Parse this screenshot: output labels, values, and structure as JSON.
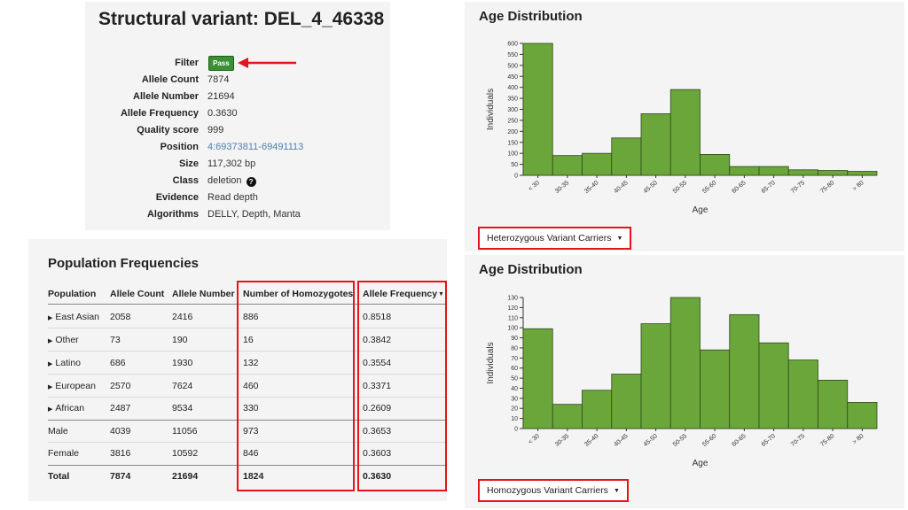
{
  "variant": {
    "title": "Structural variant: DEL_4_46338",
    "fields": [
      {
        "key": "Filter",
        "value": "Pass",
        "type": "badge"
      },
      {
        "key": "Allele Count",
        "value": "7874"
      },
      {
        "key": "Allele Number",
        "value": "21694"
      },
      {
        "key": "Allele Frequency",
        "value": "0.3630"
      },
      {
        "key": "Quality score",
        "value": "999"
      },
      {
        "key": "Position",
        "value": "4:69373811-69491113",
        "type": "link"
      },
      {
        "key": "Size",
        "value": "117,302 bp"
      },
      {
        "key": "Class",
        "value": "deletion",
        "type": "help"
      },
      {
        "key": "Evidence",
        "value": "Read depth"
      },
      {
        "key": "Algorithms",
        "value": "DELLY, Depth, Manta"
      }
    ]
  },
  "population": {
    "title": "Population Frequencies",
    "headers": [
      "Population",
      "Allele Count",
      "Allele Number",
      "Number of Homozygotes",
      "Allele Frequency"
    ],
    "sort_icon": "sort-caret-icon",
    "rows": [
      {
        "name": "East Asian",
        "expandable": true,
        "ac": "2058",
        "an": "2416",
        "hom": "886",
        "af": "0.8518"
      },
      {
        "name": "Other",
        "expandable": true,
        "ac": "73",
        "an": "190",
        "hom": "16",
        "af": "0.3842"
      },
      {
        "name": "Latino",
        "expandable": true,
        "ac": "686",
        "an": "1930",
        "hom": "132",
        "af": "0.3554"
      },
      {
        "name": "European",
        "expandable": true,
        "ac": "2570",
        "an": "7624",
        "hom": "460",
        "af": "0.3371"
      },
      {
        "name": "African",
        "expandable": true,
        "ac": "2487",
        "an": "9534",
        "hom": "330",
        "af": "0.2609"
      },
      {
        "name": "Male",
        "expandable": false,
        "ac": "4039",
        "an": "11056",
        "hom": "973",
        "af": "0.3653"
      },
      {
        "name": "Female",
        "expandable": false,
        "ac": "3816",
        "an": "10592",
        "hom": "846",
        "af": "0.3603"
      }
    ],
    "total": {
      "name": "Total",
      "ac": "7874",
      "an": "21694",
      "hom": "1824",
      "af": "0.3630"
    }
  },
  "colors": {
    "bar": "#6aa63a",
    "bar_stroke": "#2f4a1a",
    "highlight": "#e3141b",
    "link": "#4a7fb5",
    "badge": "#3b8f34"
  },
  "chart_data": [
    {
      "type": "bar",
      "title": "Age Distribution",
      "xlabel": "Age",
      "ylabel": "Individuals",
      "categories": [
        "< 30",
        "30-35",
        "35-40",
        "40-45",
        "45-50",
        "50-55",
        "55-60",
        "60-65",
        "65-70",
        "70-75",
        "75-80",
        "> 80"
      ],
      "values": [
        600,
        90,
        100,
        170,
        280,
        390,
        95,
        40,
        40,
        25,
        22,
        18
      ],
      "yticks": [
        0,
        50,
        100,
        150,
        200,
        250,
        300,
        350,
        400,
        450,
        500,
        550,
        600
      ],
      "ylim": [
        0,
        600
      ],
      "dropdown": "Heterozygous Variant Carriers"
    },
    {
      "type": "bar",
      "title": "Age Distribution",
      "xlabel": "Age",
      "ylabel": "Individuals",
      "categories": [
        "< 30",
        "30-35",
        "35-40",
        "40-45",
        "45-50",
        "50-55",
        "55-60",
        "60-65",
        "65-70",
        "70-75",
        "75-80",
        "> 80"
      ],
      "values": [
        99,
        24,
        38,
        54,
        104,
        130,
        78,
        113,
        85,
        68,
        48,
        26
      ],
      "yticks": [
        0,
        10,
        20,
        30,
        40,
        50,
        60,
        70,
        80,
        90,
        100,
        110,
        120,
        130
      ],
      "ylim": [
        0,
        130
      ],
      "dropdown": "Homozygous Variant Carriers"
    }
  ]
}
